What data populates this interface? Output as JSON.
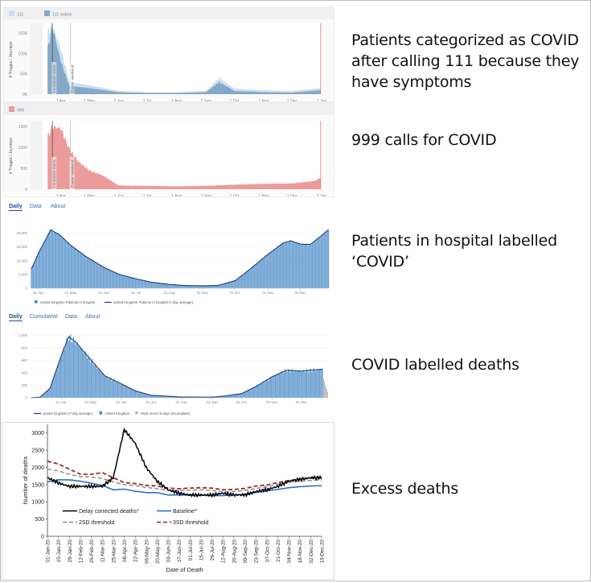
{
  "captions": [
    "Patients categorized as COVID after calling 111 because they have symptoms",
    "999 calls for COVID",
    "Patients in hospital labelled ‘COVID’",
    "COVID labelled deaths",
    "Excess deaths"
  ],
  "tabs_hospital": [
    "Daily",
    "Data",
    "About"
  ],
  "tabs_deaths": [
    "Daily",
    "Cumulative",
    "Data",
    "About"
  ],
  "colors": {
    "nhs111": "#c9e0f2",
    "nhs111_online": "#86a8c8",
    "c999": "#ec9b9b",
    "hosp_bar": "#6fa2d3",
    "hosp_line": "#1d3f7a",
    "incomplete": "#b8b8b8",
    "delay": "#000000",
    "baseline": "#1f6bbf",
    "sd2": "#8c8c8c",
    "sd3": "#9b2a2a"
  },
  "chart_data": [
    {
      "id": "nhs111",
      "type": "area",
      "legend": [
        "111",
        "111 online"
      ],
      "ylabel": "# Triages / Journeys",
      "yticks": [
        "0K",
        "50K",
        "100K",
        "150K"
      ],
      "ylim": [
        0,
        170000
      ],
      "xticks": [
        "1 Apr",
        "1 May",
        "1 Jun",
        "1 Jul",
        "1 Aug",
        "1 Sep",
        "1 Oct",
        "1 Nov",
        "1 Dec",
        "1 Jan"
      ],
      "annotations": [
        "Lockdown starts",
        "Easter weekend"
      ],
      "series": [
        {
          "name": "111 online",
          "months": [
            "Mar-18",
            "Mar-23",
            "Apr-01",
            "Apr-10",
            "May-01",
            "Jun-01",
            "Jul-01",
            "Aug-01",
            "Sep-01",
            "Sep-15",
            "Oct-01",
            "Nov-01",
            "Dec-01",
            "Dec-31"
          ],
          "values": [
            110000,
            165000,
            80000,
            20000,
            15000,
            5000,
            3000,
            3000,
            5000,
            30000,
            8000,
            5000,
            4000,
            10000
          ]
        },
        {
          "name": "111",
          "months": [
            "Mar-18",
            "Mar-23",
            "Apr-01",
            "Apr-10",
            "May-01",
            "Jun-01",
            "Jul-01",
            "Aug-01",
            "Sep-01",
            "Sep-15",
            "Oct-01",
            "Nov-01",
            "Dec-01",
            "Dec-31"
          ],
          "values": [
            150000,
            170000,
            110000,
            30000,
            22000,
            8000,
            5000,
            5000,
            8000,
            40000,
            14000,
            10000,
            8000,
            15000
          ]
        }
      ]
    },
    {
      "id": "nhs999",
      "type": "area",
      "legend": [
        "999"
      ],
      "ylabel": "# Triages / Journeys",
      "yticks": [
        "0",
        "500",
        "1000",
        "1500"
      ],
      "ylim": [
        0,
        1600
      ],
      "xticks": [
        "1 Apr",
        "1 May",
        "1 Jun",
        "1 Jul",
        "1 Aug",
        "1 Sep",
        "1 Oct",
        "1 Nov",
        "1 Dec",
        "1 Jan"
      ],
      "annotations": [
        "Lockdown starts",
        "Easter weekend"
      ],
      "series": [
        {
          "name": "999",
          "months": [
            "Mar-18",
            "Mar-23",
            "Apr-01",
            "Apr-10",
            "Apr-20",
            "May-01",
            "May-15",
            "Jun-01",
            "Jul-01",
            "Aug-01",
            "Sep-01",
            "Oct-01",
            "Nov-01",
            "Dec-01",
            "Dec-25",
            "Dec-31"
          ],
          "values": [
            1250,
            1500,
            1450,
            950,
            650,
            450,
            330,
            90,
            80,
            70,
            80,
            110,
            130,
            140,
            200,
            280
          ]
        }
      ]
    },
    {
      "id": "hospital",
      "type": "bar",
      "legend": [
        "United Kingdom Patients in hospital",
        "United Kingdom Patients in hospital (7-day average)"
      ],
      "yticks": [
        "0",
        "5,000",
        "10,000",
        "15,000",
        "20,000"
      ],
      "ylim": [
        0,
        22500
      ],
      "xticks": [
        "01 Apr",
        "01 May",
        "01 Jun",
        "01 Jul",
        "01 Aug",
        "01 Sep",
        "01 Oct",
        "01 Nov",
        "01 Dec"
      ],
      "series": [
        {
          "name": "Patients in hospital",
          "months": [
            "Mar-25",
            "Apr-01",
            "Apr-12",
            "Apr-20",
            "May-01",
            "May-15",
            "Jun-01",
            "Jun-15",
            "Jul-01",
            "Jul-15",
            "Aug-01",
            "Aug-15",
            "Sep-01",
            "Sep-15",
            "Oct-01",
            "Oct-15",
            "Nov-01",
            "Nov-15",
            "Nov-22",
            "Dec-01",
            "Dec-10",
            "Dec-20",
            "Dec-27"
          ],
          "values": [
            7000,
            13000,
            21200,
            19500,
            15500,
            11500,
            7500,
            5000,
            3400,
            2200,
            1400,
            1000,
            900,
            1000,
            2800,
            7000,
            12500,
            16500,
            17200,
            16000,
            15900,
            19000,
            21300
          ]
        }
      ]
    },
    {
      "id": "deaths",
      "type": "bar",
      "legend": [
        "United Kingdom (7-day average)",
        "United Kingdom",
        "Most recent 5 days (incomplete)"
      ],
      "yticks": [
        "0",
        "200",
        "400",
        "600",
        "800",
        "1,000"
      ],
      "ylim": [
        0,
        1100
      ],
      "xticks": [
        "01 Apr",
        "01 May",
        "01 Jun",
        "01 Jul",
        "01 Aug",
        "01 Sep",
        "01 Oct",
        "01 Nov",
        "01 Dec"
      ],
      "series": [
        {
          "name": "United Kingdom (7-day average)",
          "months": [
            "Mar-01",
            "Mar-10",
            "Mar-20",
            "Apr-01",
            "Apr-08",
            "Apr-15",
            "May-01",
            "May-15",
            "Jun-01",
            "Jun-15",
            "Jul-01",
            "Aug-01",
            "Sep-01",
            "Sep-15",
            "Oct-01",
            "Oct-15",
            "Nov-01",
            "Nov-15",
            "Dec-01",
            "Dec-15",
            "Dec-22"
          ],
          "values": [
            0,
            10,
            150,
            700,
            980,
            900,
            600,
            350,
            220,
            110,
            40,
            12,
            10,
            30,
            70,
            180,
            340,
            440,
            430,
            450,
            460
          ]
        },
        {
          "name": "Most recent 5 days (incomplete)",
          "months": [
            "Dec-23",
            "Dec-27"
          ],
          "values": [
            300,
            90
          ]
        }
      ]
    },
    {
      "id": "excess",
      "type": "line",
      "xlabel": "Date of Death",
      "ylabel": "Number of deaths",
      "ylim": [
        0,
        3250
      ],
      "yticks": [
        "0",
        "500",
        "1000",
        "1500",
        "2000",
        "2500",
        "3000"
      ],
      "xticks": [
        "01-Jan-20",
        "15-Jan-20",
        "29-Jan-20",
        "12-Feb-20",
        "26-Feb-20",
        "11-Mar-20",
        "25-Mar-20",
        "08-Apr-20",
        "22-Apr-20",
        "06-May-20",
        "20-May-20",
        "03-Jun-20",
        "17-Jun-20",
        "01-Jul-20",
        "15-Jul-20",
        "29-Jul-20",
        "12-Aug-20",
        "26-Aug-20",
        "09-Sep-20",
        "23-Sep-20",
        "07-Oct-20",
        "21-Oct-20",
        "04-Nov-20",
        "18-Nov-20",
        "02-Dec-20",
        "16-Dec-20"
      ],
      "legend": [
        "Delay corrected deaths*",
        "Baseline^",
        "2SD threshold",
        "3SD threshold"
      ],
      "series": [
        {
          "name": "Delay corrected deaths*",
          "values": [
            1700,
            1550,
            1450,
            1450,
            1450,
            1450,
            1700,
            3100,
            2700,
            2000,
            1600,
            1350,
            1250,
            1200,
            1200,
            1200,
            1250,
            1200,
            1200,
            1300,
            1350,
            1450,
            1600,
            1650,
            1700,
            1700
          ]
        },
        {
          "name": "Baseline^",
          "values": [
            1580,
            1640,
            1640,
            1600,
            1540,
            1480,
            1350,
            1370,
            1310,
            1270,
            1270,
            1200,
            1200,
            1190,
            1190,
            1180,
            1180,
            1200,
            1220,
            1270,
            1320,
            1360,
            1410,
            1440,
            1460,
            1470
          ]
        },
        {
          "name": "2SD threshold",
          "values": [
            1950,
            1900,
            1800,
            1730,
            1720,
            1680,
            1580,
            1500,
            1470,
            1420,
            1380,
            1340,
            1330,
            1340,
            1350,
            1330,
            1290,
            1300,
            1330,
            1390,
            1440,
            1510,
            1570,
            1600,
            1620,
            1640
          ]
        },
        {
          "name": "3SD threshold",
          "values": [
            2180,
            2100,
            1950,
            1800,
            1800,
            1850,
            1700,
            1560,
            1530,
            1480,
            1460,
            1400,
            1380,
            1400,
            1410,
            1400,
            1350,
            1360,
            1390,
            1460,
            1490,
            1560,
            1620,
            1660,
            1690,
            1720
          ]
        }
      ]
    }
  ]
}
